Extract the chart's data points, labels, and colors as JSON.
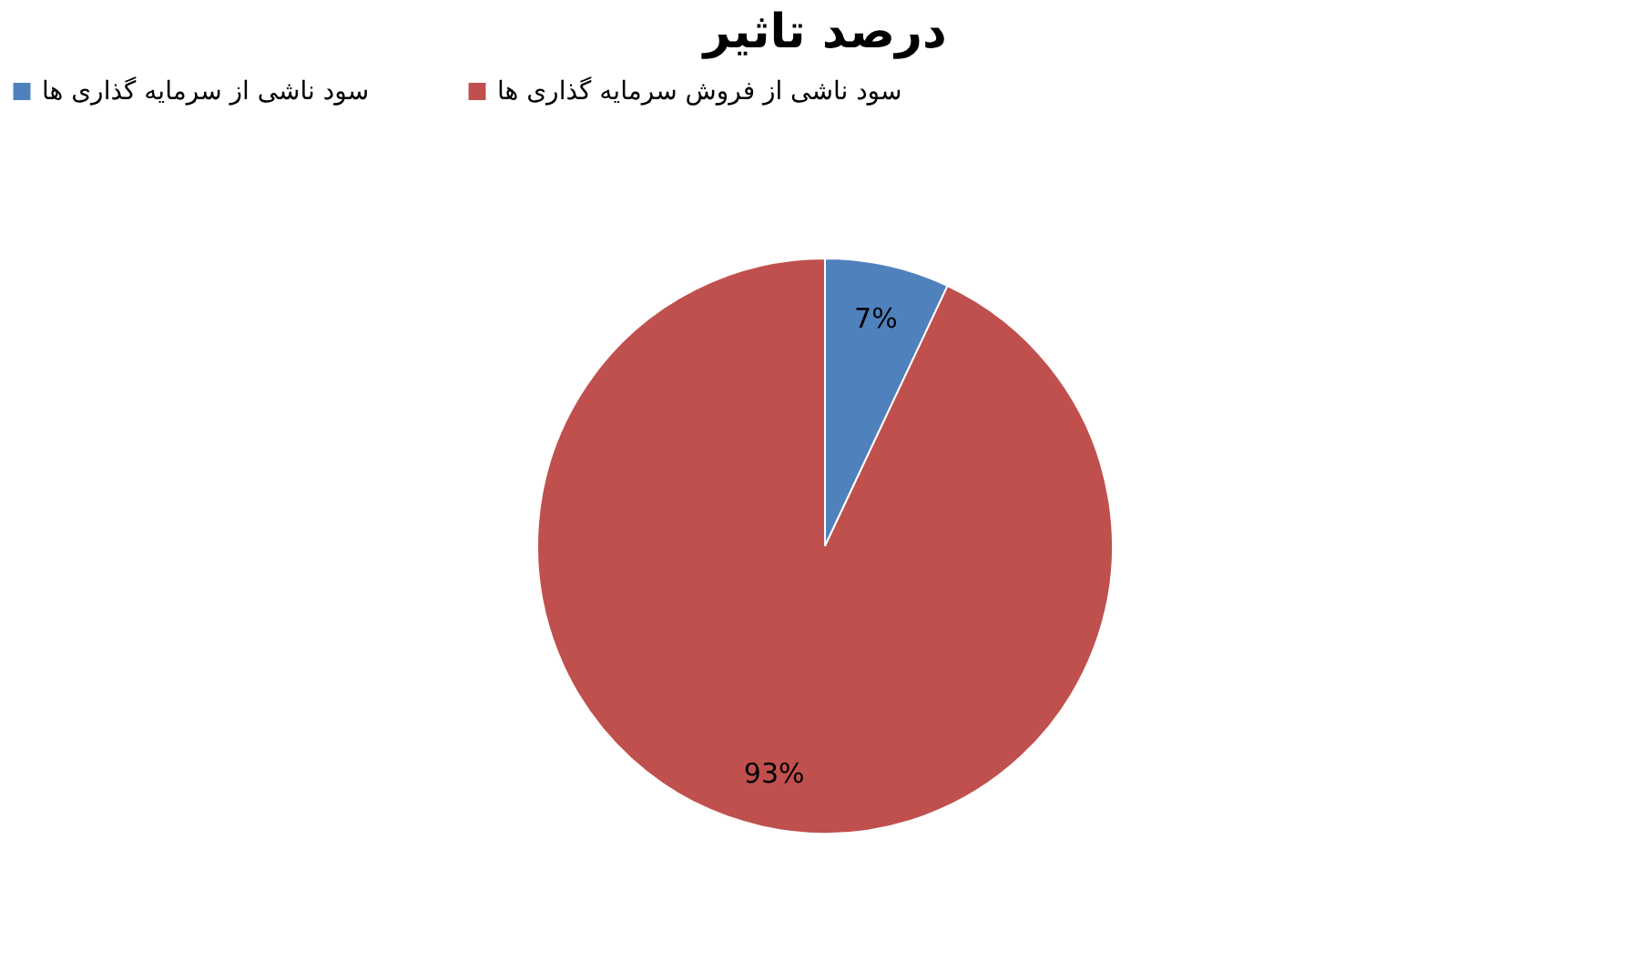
{
  "chart_data": {
    "type": "pie",
    "title": "درصد تاثیر",
    "categories": [
      "سود ناشی از سرمایه گذاری ها",
      "سود ناشی از فروش سرمایه گذاری ها"
    ],
    "values": [
      7,
      93
    ],
    "colors": [
      "#4f81bd",
      "#c0504d"
    ],
    "value_labels": [
      "7%",
      "93%"
    ],
    "legend": "top"
  }
}
